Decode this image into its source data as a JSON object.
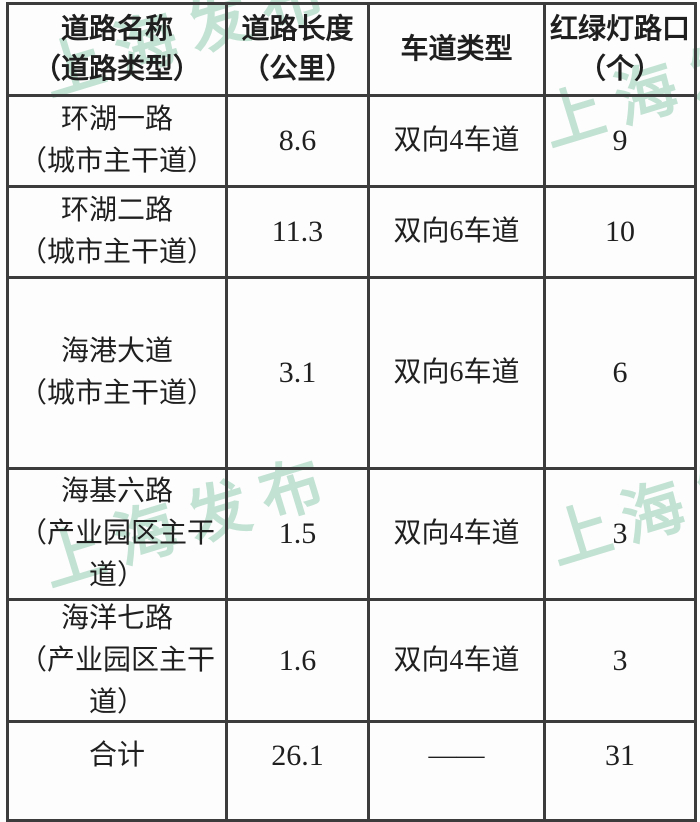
{
  "watermark": {
    "text": "上海发布",
    "color_rgba": "rgba(112, 188, 152, 0.42)"
  },
  "colors": {
    "table_border": "#3c3c3c",
    "text": "#1f1f1f",
    "background": "#fdfdfd"
  },
  "table": {
    "columns": [
      {
        "line1": "道路名称",
        "line2": "（道路类型）"
      },
      {
        "line1": "道路长度",
        "line2": "（公里）"
      },
      {
        "line1": "车道类型",
        "line2": ""
      },
      {
        "line1": "红绿灯路口",
        "line2": "（个）"
      }
    ],
    "rows": [
      {
        "name1": "环湖一路",
        "name2": "（城市主干道）",
        "name3": "",
        "length_km": "8.6",
        "lane_type": "双向4车道",
        "signals": "9"
      },
      {
        "name1": "环湖二路",
        "name2": "（城市主干道）",
        "name3": "",
        "length_km": "11.3",
        "lane_type": "双向6车道",
        "signals": "10"
      },
      {
        "name1": "海港大道",
        "name2": "（城市主干道）",
        "name3": "",
        "length_km": "3.1",
        "lane_type": "双向6车道",
        "signals": "6"
      },
      {
        "name1": "海基六路",
        "name2": "（产业园区主干",
        "name3": "道）",
        "length_km": "1.5",
        "lane_type": "双向4车道",
        "signals": "3"
      },
      {
        "name1": "海洋七路",
        "name2": "（产业园区主干",
        "name3": "道）",
        "length_km": "1.6",
        "lane_type": "双向4车道",
        "signals": "3"
      },
      {
        "name1": "合计",
        "name2": "",
        "name3": "",
        "length_km": "26.1",
        "lane_type": "——",
        "signals": "31"
      }
    ]
  }
}
